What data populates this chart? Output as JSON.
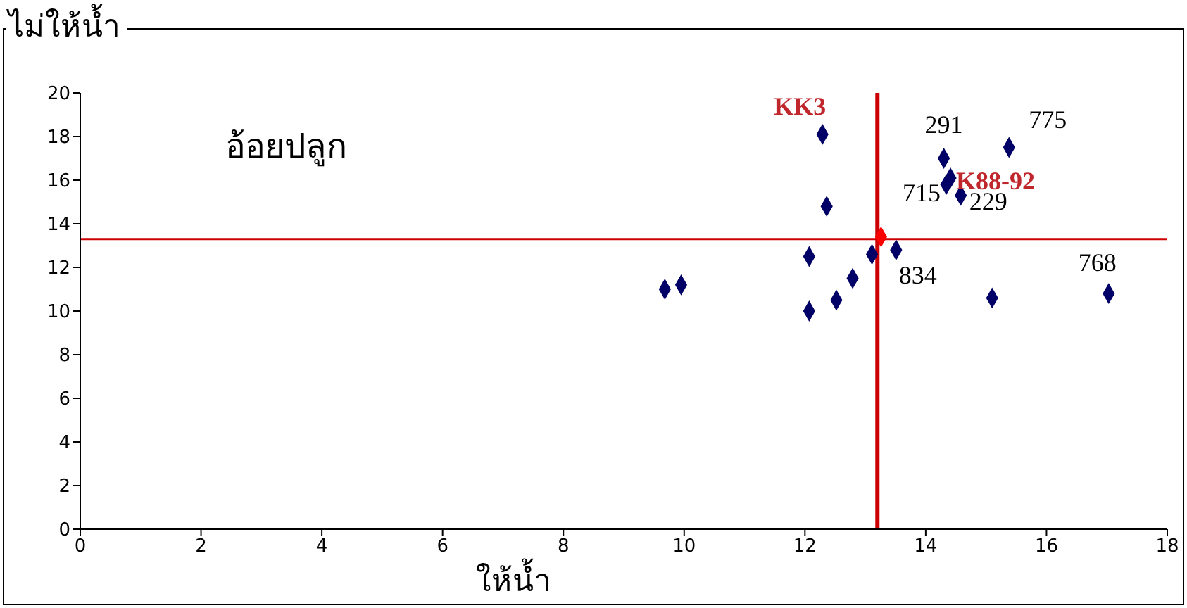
{
  "chart_data": {
    "type": "scatter",
    "ylabel": "ไม่ให้น้ำ",
    "xlabel": "ให้น้ำ",
    "xlim": [
      0,
      18
    ],
    "xticks": [
      0,
      2,
      4,
      6,
      8,
      10,
      12,
      14,
      16,
      18
    ],
    "ylim": [
      0,
      20
    ],
    "yticks": [
      0,
      2,
      4,
      6,
      8,
      10,
      12,
      14,
      16,
      18,
      20
    ],
    "marker": "diamond",
    "series": [
      {
        "color": "#000066",
        "x": [
          12.29,
          12.36,
          12.07,
          13.11,
          13.51,
          12.79,
          12.52,
          12.07,
          9.68,
          9.95,
          14.3,
          15.38,
          14.41,
          14.34,
          14.58,
          15.1,
          17.03
        ],
        "values": [
          18.1,
          14.8,
          12.5,
          12.6,
          12.8,
          11.5,
          10.5,
          10.0,
          11.0,
          11.2,
          17.0,
          17.5,
          16.1,
          15.8,
          15.3,
          10.6,
          10.8
        ]
      },
      {
        "color": "#ff0000",
        "x": [
          13.26
        ],
        "values": [
          13.4
        ]
      }
    ],
    "ref_lines": [
      {
        "axis": "x",
        "value": 13.2,
        "color": "#cc0000"
      },
      {
        "axis": "y",
        "value": 13.3,
        "color": "#cc0000"
      }
    ],
    "annotations": [
      "อ้อยปลูก",
      {
        "text": "KK3",
        "x": 12.29,
        "y": 18.1
      },
      {
        "text": "291",
        "x": 14.3,
        "y": 17.0
      },
      {
        "text": "775",
        "x": 15.38,
        "y": 17.5
      },
      {
        "text": "K88-92",
        "x": 14.41,
        "y": 16.1
      },
      {
        "text": "715",
        "x": 14.34,
        "y": 15.8
      },
      {
        "text": "229",
        "x": 14.58,
        "y": 15.3
      },
      {
        "text": "834",
        "x": 13.51,
        "y": 12.8
      },
      {
        "text": "768",
        "x": 17.03,
        "y": 10.8
      }
    ]
  }
}
